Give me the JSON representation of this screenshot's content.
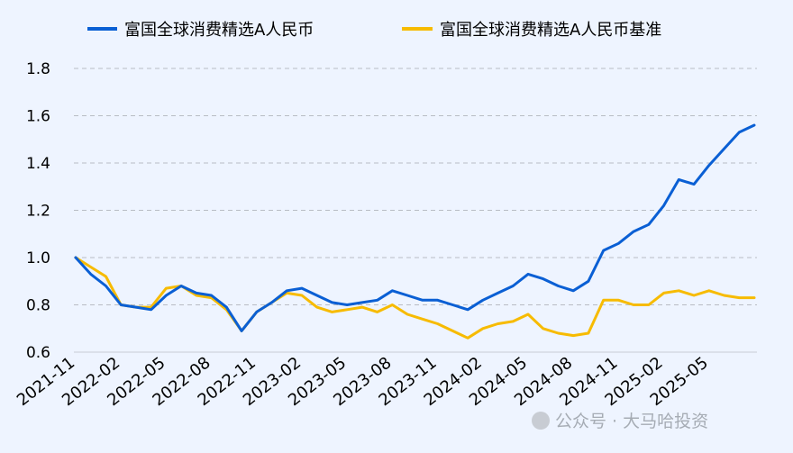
{
  "chart_data": {
    "type": "line",
    "title": "",
    "xlabel": "",
    "ylabel": "",
    "ylim": [
      0.6,
      1.8
    ],
    "y_ticks": [
      "0.6",
      "0.8",
      "1.0",
      "1.2",
      "1.4",
      "1.6",
      "1.8"
    ],
    "x_ticks": [
      "2021-11",
      "2022-02",
      "2022-05",
      "2022-08",
      "2022-11",
      "2023-02",
      "2023-05",
      "2023-08",
      "2023-11",
      "2024-02",
      "2024-05",
      "2024-08",
      "2024-11",
      "2025-02",
      "2025-05"
    ],
    "grid": "horizontal dashed",
    "legend_position": "top",
    "x": [
      "2021-11",
      "2021-12",
      "2022-01",
      "2022-02",
      "2022-03",
      "2022-04",
      "2022-05",
      "2022-06",
      "2022-07",
      "2022-08",
      "2022-09",
      "2022-10",
      "2022-11",
      "2022-12",
      "2023-01",
      "2023-02",
      "2023-03",
      "2023-04",
      "2023-05",
      "2023-06",
      "2023-07",
      "2023-08",
      "2023-09",
      "2023-10",
      "2023-11",
      "2023-12",
      "2024-01",
      "2024-02",
      "2024-03",
      "2024-04",
      "2024-05",
      "2024-06",
      "2024-07",
      "2024-08",
      "2024-09",
      "2024-10",
      "2024-11",
      "2024-12",
      "2025-01",
      "2025-02",
      "2025-03",
      "2025-04",
      "2025-05",
      "2025-06",
      "2025-07",
      "2025-08"
    ],
    "series": [
      {
        "name": "富国全球消费精选A人民币",
        "color": "#0a5fd4",
        "values": [
          1.0,
          0.93,
          0.88,
          0.8,
          0.79,
          0.78,
          0.84,
          0.88,
          0.85,
          0.84,
          0.79,
          0.69,
          0.77,
          0.81,
          0.86,
          0.87,
          0.84,
          0.81,
          0.8,
          0.81,
          0.82,
          0.86,
          0.84,
          0.82,
          0.82,
          0.8,
          0.78,
          0.82,
          0.85,
          0.88,
          0.93,
          0.91,
          0.88,
          0.86,
          0.9,
          1.03,
          1.06,
          1.11,
          1.14,
          1.22,
          1.33,
          1.31,
          1.39,
          1.46,
          1.53,
          1.56
        ]
      },
      {
        "name": "富国全球消费精选A人民币基准",
        "color": "#f7bb00",
        "values": [
          1.0,
          0.96,
          0.92,
          0.8,
          0.79,
          0.79,
          0.87,
          0.88,
          0.84,
          0.83,
          0.78,
          0.69,
          0.77,
          0.81,
          0.85,
          0.84,
          0.79,
          0.77,
          0.78,
          0.79,
          0.77,
          0.8,
          0.76,
          0.74,
          0.72,
          0.69,
          0.66,
          0.7,
          0.72,
          0.73,
          0.76,
          0.7,
          0.68,
          0.67,
          0.68,
          0.82,
          0.82,
          0.8,
          0.8,
          0.85,
          0.86,
          0.84,
          0.86,
          0.84,
          0.83,
          0.83
        ]
      }
    ]
  },
  "watermark": "公众号 · 大马哈投资"
}
